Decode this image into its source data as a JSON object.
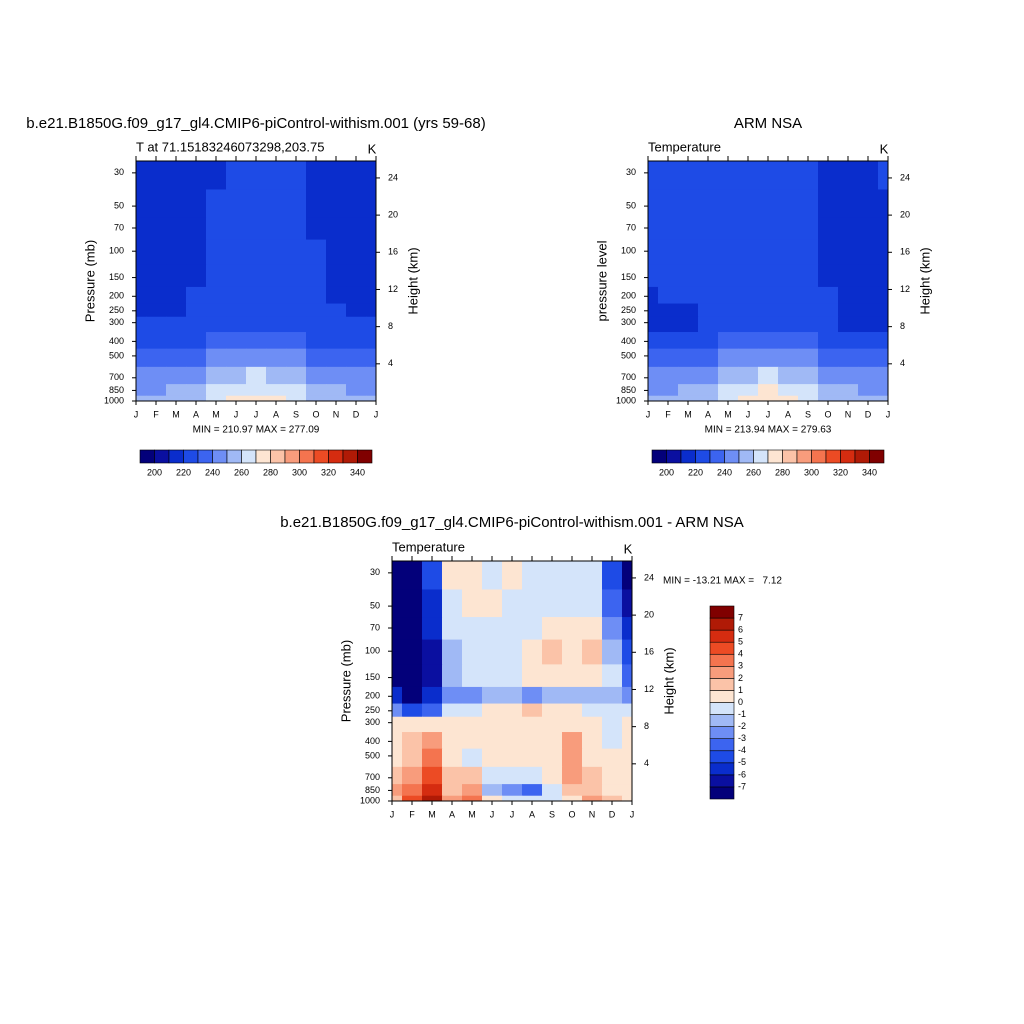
{
  "chart_data": [
    {
      "type": "contour",
      "title": "b.e21.B1850G.f09_g17_gl4.CMIP6-piControl-withism.001 (yrs 59-68)",
      "left_string": "T at 71.15183246073298,203.75",
      "right_string": "K",
      "ylabel": "Pressure (mb)",
      "y2label": "Height (km)",
      "stats": "MIN = 210.97 MAX = 277.09",
      "categories": [
        "J",
        "F",
        "M",
        "A",
        "M",
        "J",
        "J",
        "A",
        "S",
        "O",
        "N",
        "D",
        "J"
      ],
      "ylim": [
        1000,
        25
      ],
      "log_y": true,
      "yticks": [
        30,
        50,
        70,
        100,
        150,
        200,
        250,
        300,
        400,
        500,
        700,
        850,
        1000
      ],
      "y2ticks": [
        4,
        8,
        12,
        16,
        20,
        24
      ],
      "colorbar": "horizontal",
      "levels": [
        200,
        210,
        220,
        230,
        240,
        250,
        260,
        270,
        280,
        290,
        300,
        310,
        320,
        330,
        340
      ],
      "colors": [
        "#03007a",
        "#0a0fa0",
        "#0a2dcc",
        "#1e4be6",
        "#3c64f0",
        "#6e8ef5",
        "#a0b9f5",
        "#d4e4fa",
        "#fde5d2",
        "#fbc3a8",
        "#f89c7c",
        "#f4744f",
        "#ec4b24",
        "#d52c10",
        "#b01a06",
        "#800000"
      ],
      "z": [
        [
          215,
          215,
          215,
          215,
          215,
          222,
          225,
          222,
          222,
          215,
          215,
          215,
          215
        ],
        [
          215,
          215,
          215,
          215,
          222,
          222,
          222,
          222,
          222,
          215,
          215,
          215,
          215
        ],
        [
          215,
          215,
          215,
          215,
          222,
          222,
          222,
          222,
          222,
          215,
          215,
          215,
          215
        ],
        [
          215,
          215,
          215,
          215,
          222,
          222,
          222,
          222,
          222,
          222,
          215,
          215,
          215
        ],
        [
          215,
          215,
          215,
          215,
          222,
          222,
          222,
          222,
          222,
          222,
          215,
          215,
          215
        ],
        [
          215,
          215,
          215,
          222,
          222,
          222,
          222,
          222,
          222,
          222,
          215,
          215,
          215
        ],
        [
          215,
          215,
          215,
          222,
          222,
          222,
          222,
          222,
          222,
          222,
          222,
          215,
          215
        ],
        [
          222,
          222,
          222,
          222,
          222,
          222,
          225,
          222,
          222,
          222,
          222,
          222,
          222
        ],
        [
          228,
          228,
          228,
          228,
          232,
          235,
          235,
          233,
          232,
          228,
          228,
          228,
          228
        ],
        [
          235,
          235,
          235,
          236,
          240,
          245,
          245,
          245,
          240,
          236,
          235,
          235,
          235
        ],
        [
          245,
          245,
          246,
          248,
          253,
          258,
          260,
          258,
          253,
          248,
          246,
          245,
          245
        ],
        [
          248,
          248,
          250,
          253,
          262,
          266,
          268,
          266,
          262,
          255,
          250,
          248,
          248
        ],
        [
          250,
          250,
          252,
          256,
          266,
          272,
          275,
          272,
          265,
          258,
          252,
          250,
          250
        ]
      ]
    },
    {
      "type": "contour",
      "title": "ARM NSA",
      "left_string": "Temperature",
      "right_string": "K",
      "ylabel": "pressure level",
      "y2label": "Height (km)",
      "stats": "MIN = 213.94 MAX = 279.63",
      "categories": [
        "J",
        "F",
        "M",
        "A",
        "M",
        "J",
        "J",
        "A",
        "S",
        "O",
        "N",
        "D",
        "J"
      ],
      "ylim": [
        1000,
        25
      ],
      "log_y": true,
      "yticks": [
        30,
        50,
        70,
        100,
        150,
        200,
        250,
        300,
        400,
        500,
        700,
        850,
        1000
      ],
      "y2ticks": [
        4,
        8,
        12,
        16,
        20,
        24
      ],
      "colorbar": "horizontal",
      "levels": [
        200,
        210,
        220,
        230,
        240,
        250,
        260,
        270,
        280,
        290,
        300,
        310,
        320,
        330,
        340
      ],
      "colors": [
        "#03007a",
        "#0a0fa0",
        "#0a2dcc",
        "#1e4be6",
        "#3c64f0",
        "#6e8ef5",
        "#a0b9f5",
        "#d4e4fa",
        "#fde5d2",
        "#fbc3a8",
        "#f89c7c",
        "#f4744f",
        "#ec4b24",
        "#d52c10",
        "#b01a06",
        "#800000"
      ],
      "z": [
        [
          222,
          222,
          222,
          222,
          222,
          222,
          225,
          222,
          222,
          215,
          215,
          215,
          222
        ],
        [
          222,
          222,
          222,
          222,
          222,
          222,
          222,
          222,
          222,
          215,
          215,
          215,
          215
        ],
        [
          222,
          222,
          222,
          222,
          222,
          222,
          222,
          222,
          222,
          215,
          215,
          215,
          215
        ],
        [
          222,
          222,
          222,
          222,
          222,
          222,
          222,
          222,
          222,
          215,
          215,
          215,
          215
        ],
        [
          222,
          222,
          222,
          222,
          222,
          222,
          222,
          222,
          222,
          215,
          215,
          215,
          215
        ],
        [
          218,
          222,
          222,
          222,
          222,
          222,
          222,
          222,
          222,
          222,
          215,
          215,
          215
        ],
        [
          215,
          215,
          215,
          222,
          222,
          222,
          222,
          222,
          222,
          222,
          215,
          215,
          215
        ],
        [
          215,
          215,
          218,
          222,
          222,
          222,
          225,
          222,
          222,
          222,
          218,
          215,
          215
        ],
        [
          228,
          228,
          228,
          228,
          232,
          235,
          235,
          233,
          232,
          228,
          228,
          228,
          228
        ],
        [
          235,
          235,
          235,
          236,
          240,
          245,
          245,
          245,
          240,
          236,
          235,
          235,
          235
        ],
        [
          245,
          245,
          246,
          248,
          253,
          258,
          262,
          258,
          253,
          248,
          246,
          245,
          245
        ],
        [
          248,
          248,
          250,
          253,
          262,
          266,
          270,
          266,
          262,
          255,
          250,
          248,
          248
        ],
        [
          250,
          250,
          252,
          256,
          266,
          272,
          276,
          272,
          265,
          258,
          252,
          250,
          250
        ]
      ]
    },
    {
      "type": "contour",
      "title": "b.e21.B1850G.f09_g17_gl4.CMIP6-piControl-withism.001 - ARM NSA",
      "left_string": "Temperature",
      "right_string": "K",
      "ylabel": "Pressure (mb)",
      "y2label": "Height (km)",
      "stats": "MIN = -13.21 MAX =   7.12",
      "categories": [
        "J",
        "F",
        "M",
        "A",
        "M",
        "J",
        "J",
        "A",
        "S",
        "O",
        "N",
        "D",
        "J"
      ],
      "ylim": [
        1000,
        25
      ],
      "log_y": true,
      "yticks": [
        30,
        50,
        70,
        100,
        150,
        200,
        250,
        300,
        400,
        500,
        700,
        850,
        1000
      ],
      "y2ticks": [
        4,
        8,
        12,
        16,
        20,
        24
      ],
      "colorbar": "vertical",
      "levels": [
        -7,
        -6,
        -5,
        -4,
        -3,
        -2,
        -1,
        0,
        1,
        2,
        3,
        4,
        5,
        6,
        7
      ],
      "colors": [
        "#03007a",
        "#0a0fa0",
        "#0a2dcc",
        "#1e4be6",
        "#3c64f0",
        "#6e8ef5",
        "#a0b9f5",
        "#d4e4fa",
        "#fde5d2",
        "#fbc3a8",
        "#f89c7c",
        "#f4744f",
        "#ec4b24",
        "#d52c10",
        "#b01a06",
        "#800000"
      ],
      "z": [
        [
          -8,
          -8,
          -5,
          0.5,
          0.5,
          -0.5,
          0.5,
          -0.5,
          -0.5,
          -0.5,
          -1,
          -5,
          -8
        ],
        [
          -8,
          -8,
          -6,
          -0.5,
          0.5,
          0.5,
          -0.5,
          -0.5,
          -0.5,
          -0.5,
          -0.5,
          -4,
          -7
        ],
        [
          -8,
          -8,
          -6,
          -1,
          -0.5,
          -0.5,
          -0.5,
          -0.5,
          0.5,
          0.5,
          0.5,
          -3,
          -6
        ],
        [
          -8,
          -8,
          -7,
          -2,
          -0.5,
          -0.5,
          -0.5,
          0.5,
          1.5,
          0.5,
          1.5,
          -2,
          -5
        ],
        [
          -8,
          -8,
          -7,
          -2,
          -0.5,
          -0.5,
          -0.5,
          0.5,
          0.5,
          0.5,
          0.5,
          -1,
          -4
        ],
        [
          -6,
          -8,
          -6,
          -3,
          -3,
          -2,
          -2,
          -3,
          -2,
          -2,
          -2,
          -2,
          -3
        ],
        [
          -3,
          -5,
          -4,
          -1,
          -1,
          0.5,
          0.5,
          1.5,
          0.5,
          0.5,
          -0.5,
          -0.5,
          -1
        ],
        [
          0.5,
          0.5,
          0.5,
          0.5,
          0.5,
          0.5,
          0.5,
          0.5,
          0.5,
          0.5,
          0.5,
          -0.5,
          0.5
        ],
        [
          0.5,
          1.5,
          2.5,
          0.5,
          0.5,
          0.5,
          0.5,
          0.5,
          0.5,
          2.5,
          0.5,
          -0.5,
          0.5
        ],
        [
          0.5,
          1.5,
          3.5,
          0.5,
          -0.5,
          0.5,
          0.5,
          0.5,
          0.5,
          2.5,
          0.5,
          0.5,
          0.5
        ],
        [
          1.5,
          2.5,
          4.5,
          1.5,
          1.5,
          -0.5,
          -1,
          -0.5,
          0.5,
          2.5,
          1.5,
          0.5,
          0.5
        ],
        [
          2.5,
          3.5,
          5.5,
          1.5,
          2.5,
          -1.5,
          -3,
          -4,
          -1,
          1.5,
          1.5,
          0.5,
          0.5
        ],
        [
          1.5,
          4.5,
          6.5,
          2.5,
          3.5,
          0.5,
          -1,
          -1,
          -0.5,
          0.5,
          2.5,
          1.5,
          0.5
        ]
      ]
    }
  ]
}
